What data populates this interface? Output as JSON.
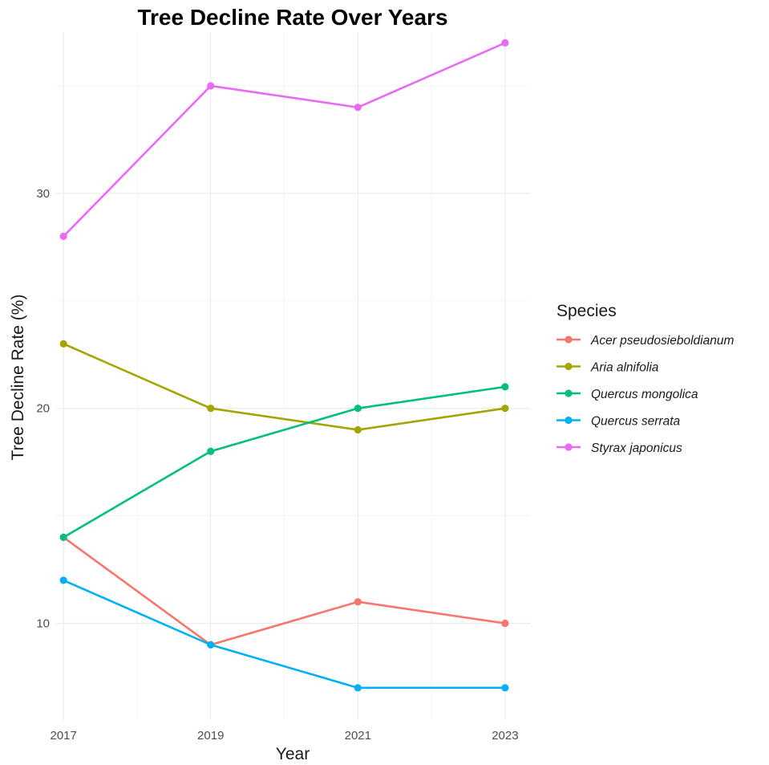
{
  "chart_data": {
    "type": "line",
    "title": "Tree Decline Rate Over Years",
    "xlabel": "Year",
    "ylabel": "Tree Decline Rate (%)",
    "x": [
      2017,
      2019,
      2021,
      2023
    ],
    "xlim": [
      2016.9,
      2023.35
    ],
    "ylim": [
      5.5,
      37.5
    ],
    "y_ticks": [
      10,
      20,
      30
    ],
    "y_minor_ticks": [
      15,
      25,
      35
    ],
    "grid": true,
    "legend": {
      "title": "Species",
      "position": "right"
    },
    "series": [
      {
        "name": "Acer pseudosieboldianum",
        "color": "#F8766D",
        "values": [
          14,
          9,
          11,
          10
        ]
      },
      {
        "name": "Aria alnifolia",
        "color": "#A3A500",
        "values": [
          23,
          20,
          19,
          20
        ]
      },
      {
        "name": "Quercus mongolica",
        "color": "#00BF7D",
        "values": [
          14,
          18,
          20,
          21
        ]
      },
      {
        "name": "Quercus serrata",
        "color": "#00B0F6",
        "values": [
          12,
          9,
          7,
          7
        ]
      },
      {
        "name": "Styrax japonicus",
        "color": "#E76BF3",
        "values": [
          28,
          35,
          34,
          37
        ]
      }
    ]
  }
}
